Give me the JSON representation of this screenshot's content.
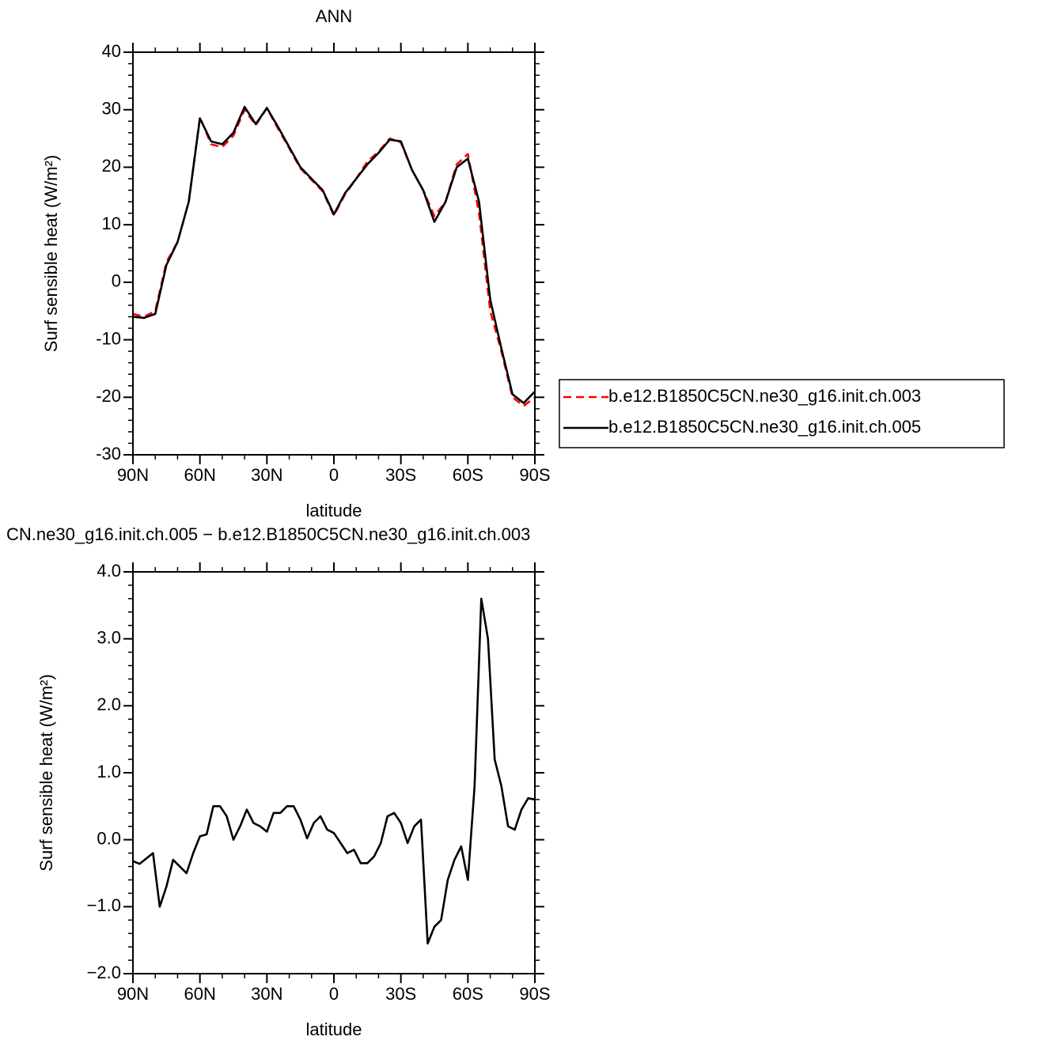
{
  "chart_data": [
    {
      "type": "line",
      "title": "ANN",
      "xlabel": "latitude",
      "ylabel": "Surf sensible heat (W/m²)",
      "x": [
        90,
        85,
        80,
        75,
        70,
        65,
        60,
        55,
        50,
        45,
        40,
        35,
        30,
        25,
        20,
        15,
        10,
        5,
        0,
        -5,
        -10,
        -15,
        -20,
        -25,
        -30,
        -35,
        -40,
        -45,
        -50,
        -55,
        -60,
        -65,
        -70,
        -75,
        -80,
        -85,
        -90
      ],
      "series": [
        {
          "name": "b.e12.B1850C5CN.ne30_g16.init.ch.003",
          "color": "#ff0000",
          "dash": "dashed",
          "values": [
            -5.5,
            -6,
            -5,
            3.5,
            7,
            14,
            28.7,
            24,
            23.5,
            25.5,
            30,
            27.3,
            30.3,
            26.7,
            23.3,
            19.8,
            17.8,
            15.8,
            11.6,
            15.3,
            18,
            21,
            22.7,
            25,
            24.3,
            19.5,
            16,
            11.5,
            14,
            20.5,
            22.3,
            12,
            -5,
            -12,
            -20,
            -21.5,
            -20
          ]
        },
        {
          "name": "b.e12.B1850C5CN.ne30_g16.init.ch.005",
          "color": "#000000",
          "dash": "solid",
          "values": [
            -6,
            -6.2,
            -5.5,
            3,
            7,
            14,
            28.5,
            24.5,
            24,
            26,
            30.5,
            27.5,
            30.3,
            27,
            23.5,
            20,
            18,
            16,
            11.8,
            15.5,
            18,
            20.5,
            22.5,
            24.8,
            24.5,
            19.5,
            16,
            10.5,
            14,
            20,
            21.5,
            14,
            -3,
            -11.5,
            -19.5,
            -21,
            -19
          ]
        }
      ],
      "xlim": [
        90,
        -90
      ],
      "xticks": [
        {
          "value": 90,
          "label": "90N"
        },
        {
          "value": 60,
          "label": "60N"
        },
        {
          "value": 30,
          "label": "30N"
        },
        0,
        {
          "value": -30,
          "label": "30S"
        },
        {
          "value": -60,
          "label": "60S"
        },
        {
          "value": -90,
          "label": "90S"
        }
      ],
      "ylim": [
        -30,
        40
      ],
      "yticks": [
        -30,
        -20,
        -10,
        0,
        10,
        20,
        30,
        40
      ],
      "legend": "right"
    },
    {
      "type": "line",
      "title": "CN.ne30_g16.init.ch.005 − b.e12.B1850C5CN.ne30_g16.init.ch.003",
      "xlabel": "latitude",
      "ylabel": "Surf sensible heat (W/m²)",
      "x": [
        90,
        87,
        84,
        81,
        78,
        75,
        72,
        69,
        66,
        63,
        60,
        57,
        54,
        51,
        48,
        45,
        42,
        39,
        36,
        33,
        30,
        27,
        24,
        21,
        18,
        15,
        12,
        9,
        6,
        3,
        0,
        -3,
        -6,
        -9,
        -12,
        -15,
        -18,
        -21,
        -24,
        -27,
        -30,
        -33,
        -36,
        -39,
        -42,
        -45,
        -48,
        -51,
        -54,
        -57,
        -60,
        -63,
        -66,
        -69,
        -72,
        -75,
        -78,
        -81,
        -84,
        -87,
        -90
      ],
      "series": [
        {
          "color": "#000000",
          "dash": "solid",
          "values": [
            -0.32,
            -0.36,
            -0.28,
            -0.2,
            -1.0,
            -0.7,
            -0.3,
            -0.4,
            -0.5,
            -0.2,
            0.05,
            0.08,
            0.5,
            0.5,
            0.35,
            0.0,
            0.2,
            0.45,
            0.25,
            0.2,
            0.12,
            0.4,
            0.4,
            0.5,
            0.5,
            0.3,
            0.02,
            0.25,
            0.35,
            0.15,
            0.1,
            -0.05,
            -0.2,
            -0.15,
            -0.35,
            -0.35,
            -0.25,
            -0.05,
            0.35,
            0.4,
            0.25,
            -0.05,
            0.2,
            0.3,
            -1.55,
            -1.3,
            -1.2,
            -0.6,
            -0.3,
            -0.1,
            -0.6,
            0.8,
            3.6,
            3.0,
            1.2,
            0.8,
            0.2,
            0.15,
            0.45,
            0.62,
            0.6
          ]
        }
      ],
      "xlim": [
        90,
        -90
      ],
      "xticks": [
        {
          "value": 90,
          "label": "90N"
        },
        {
          "value": 60,
          "label": "60N"
        },
        {
          "value": 30,
          "label": "30N"
        },
        0,
        {
          "value": -30,
          "label": "30S"
        },
        {
          "value": -60,
          "label": "60S"
        },
        {
          "value": -90,
          "label": "90S"
        }
      ],
      "ylim": [
        -2,
        4
      ],
      "yticks": [
        {
          "value": -2,
          "label": "−2.0"
        },
        {
          "value": -1,
          "label": "−1.0"
        },
        {
          "value": 0,
          "label": "0.0"
        },
        {
          "value": 1,
          "label": "1.0"
        },
        {
          "value": 2,
          "label": "2.0"
        },
        {
          "value": 3,
          "label": "3.0"
        },
        {
          "value": 4,
          "label": "4.0"
        }
      ]
    }
  ]
}
